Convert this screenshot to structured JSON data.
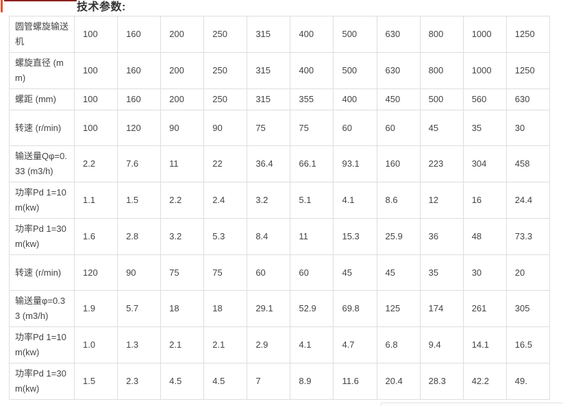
{
  "page": {
    "title": "技术参数:",
    "accent_bar_color": "#e8532a",
    "top_strip_color": "#8b2020",
    "table_border_color": "#dddddd",
    "title_color": "#333333",
    "text_color": "#444444"
  },
  "table": {
    "rows": [
      {
        "label": "圆管螺旋输送机",
        "short": false,
        "values": [
          "100",
          "160",
          "200",
          "250",
          "315",
          "400",
          "500",
          "630",
          "800",
          "1000",
          "1250"
        ]
      },
      {
        "label": "螺旋直径 (mm)",
        "short": false,
        "values": [
          "100",
          "160",
          "200",
          "250",
          "315",
          "400",
          "500",
          "630",
          "800",
          "1000",
          "1250"
        ]
      },
      {
        "label": "螺距 (mm)",
        "short": true,
        "values": [
          "100",
          "160",
          "200",
          "250",
          "315",
          "355",
          "400",
          "450",
          "500",
          "560",
          "630"
        ]
      },
      {
        "label": "转速 (r/min)",
        "short": false,
        "values": [
          "100",
          "120",
          "90",
          "90",
          "75",
          "75",
          "60",
          "60",
          "45",
          "35",
          "30"
        ]
      },
      {
        "label": "输送量Qφ=0.33 (m3/h)",
        "short": false,
        "values": [
          "2.2",
          "7.6",
          "11",
          "22",
          "36.4",
          "66.1",
          "93.1",
          "160",
          "223",
          "304",
          "458"
        ]
      },
      {
        "label": "功率Pd 1=10 m(kw)",
        "short": false,
        "values": [
          "1.1",
          "1.5",
          "2.2",
          "2.4",
          "3.2",
          "5.1",
          "4.1",
          "8.6",
          "12",
          "16",
          "24.4"
        ]
      },
      {
        "label": "功率Pd 1=30 m(kw)",
        "short": false,
        "values": [
          "1.6",
          "2.8",
          "3.2",
          "5.3",
          "8.4",
          "11",
          "15.3",
          "25.9",
          "36",
          "48",
          "73.3"
        ]
      },
      {
        "label": "转速 (r/min)",
        "short": false,
        "values": [
          "120",
          "90",
          "75",
          "75",
          "60",
          "60",
          "45",
          "45",
          "35",
          "30",
          "20"
        ]
      },
      {
        "label": "输送量φ=0.33 (m3/h)",
        "short": false,
        "values": [
          "1.9",
          "5.7",
          "18",
          "18",
          "29.1",
          "52.9",
          "69.8",
          "125",
          "174",
          "261",
          "305"
        ]
      },
      {
        "label": "功率Pd 1=10 m(kw)",
        "short": false,
        "values": [
          "1.0",
          "1.3",
          "2.1",
          "2.1",
          "2.9",
          "4.1",
          "4.7",
          "6.8",
          "9.4",
          "14.1",
          "16.5"
        ]
      },
      {
        "label": "功率Pd 1=30 m(kw)",
        "short": false,
        "values": [
          "1.5",
          "2.3",
          "4.5",
          "4.5",
          "7",
          "8.9",
          "11.6",
          "20.4",
          "28.3",
          "42.2",
          "49."
        ]
      }
    ]
  }
}
